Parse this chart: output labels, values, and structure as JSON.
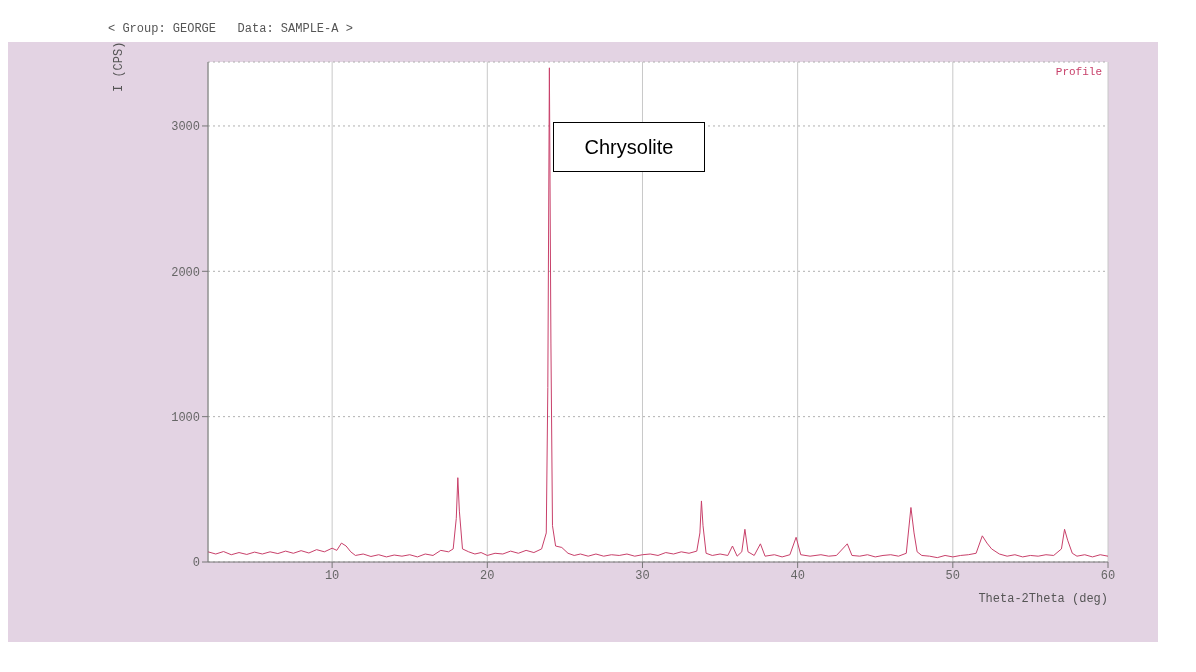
{
  "chart_data": {
    "type": "line",
    "title": "< Group: GEORGE   Data: SAMPLE-A >",
    "xlabel": "Theta-2Theta (deg)",
    "ylabel": "I (CPS)",
    "annotations": [
      "Chrysolite",
      "Profile"
    ],
    "xlim": [
      2,
      60
    ],
    "xticks": [
      10,
      20,
      30,
      40,
      50,
      60
    ],
    "ylim": [
      0,
      3440
    ],
    "yticks": [
      0,
      1000,
      2000,
      3000
    ],
    "grid": true,
    "marker": "none",
    "line_style": "solid",
    "x": [
      2,
      2.5,
      3,
      3.5,
      4,
      4.5,
      5,
      5.5,
      6,
      6.5,
      7,
      7.5,
      8,
      8.5,
      9,
      9.5,
      10,
      10.3,
      10.6,
      10.9,
      11.2,
      11.5,
      12,
      12.5,
      13,
      13.5,
      14,
      14.5,
      15,
      15.5,
      16,
      16.5,
      17,
      17.5,
      17.8,
      18,
      18.1,
      18.2,
      18.4,
      18.8,
      19.2,
      19.6,
      20,
      20.5,
      21,
      21.5,
      22,
      22.5,
      23,
      23.5,
      23.8,
      23.9,
      24,
      24.1,
      24.2,
      24.4,
      24.8,
      25.2,
      25.6,
      26,
      26.5,
      27,
      27.5,
      28,
      28.5,
      29,
      29.5,
      30,
      30.5,
      31,
      31.5,
      32,
      32.5,
      33,
      33.5,
      33.7,
      33.8,
      33.9,
      34.1,
      34.5,
      35,
      35.5,
      35.8,
      36.1,
      36.4,
      36.6,
      36.8,
      37.2,
      37.6,
      37.9,
      38.5,
      39,
      39.5,
      39.9,
      40.2,
      40.8,
      41.5,
      42,
      42.5,
      43.2,
      43.5,
      44,
      44.5,
      45,
      45.5,
      46,
      46.5,
      47,
      47.3,
      47.5,
      47.7,
      48,
      48.5,
      49,
      49.5,
      50,
      50.5,
      51,
      51.5,
      51.9,
      52.2,
      52.5,
      53,
      53.5,
      54,
      54.5,
      55,
      55.5,
      56,
      56.5,
      57,
      57.2,
      57.4,
      57.7,
      58,
      58.5,
      59,
      59.5,
      60
    ],
    "series": [
      {
        "color": "#c8406a",
        "values": [
          70,
          55,
          72,
          50,
          65,
          52,
          68,
          55,
          70,
          58,
          75,
          60,
          78,
          62,
          85,
          70,
          95,
          80,
          130,
          110,
          70,
          45,
          55,
          38,
          50,
          35,
          48,
          40,
          50,
          35,
          55,
          45,
          80,
          70,
          90,
          300,
          580,
          350,
          90,
          70,
          55,
          65,
          45,
          60,
          55,
          75,
          60,
          80,
          65,
          90,
          200,
          1200,
          3400,
          1500,
          250,
          110,
          100,
          60,
          45,
          55,
          40,
          55,
          40,
          50,
          45,
          55,
          40,
          50,
          55,
          45,
          65,
          55,
          70,
          60,
          75,
          200,
          420,
          250,
          60,
          45,
          55,
          45,
          110,
          40,
          70,
          225,
          70,
          45,
          125,
          40,
          50,
          35,
          50,
          170,
          50,
          40,
          50,
          40,
          45,
          125,
          45,
          40,
          50,
          35,
          45,
          50,
          40,
          60,
          375,
          200,
          70,
          45,
          40,
          30,
          45,
          35,
          45,
          50,
          60,
          180,
          130,
          90,
          55,
          40,
          50,
          35,
          45,
          40,
          50,
          45,
          90,
          225,
          150,
          60,
          40,
          50,
          35,
          50,
          40
        ]
      }
    ]
  }
}
